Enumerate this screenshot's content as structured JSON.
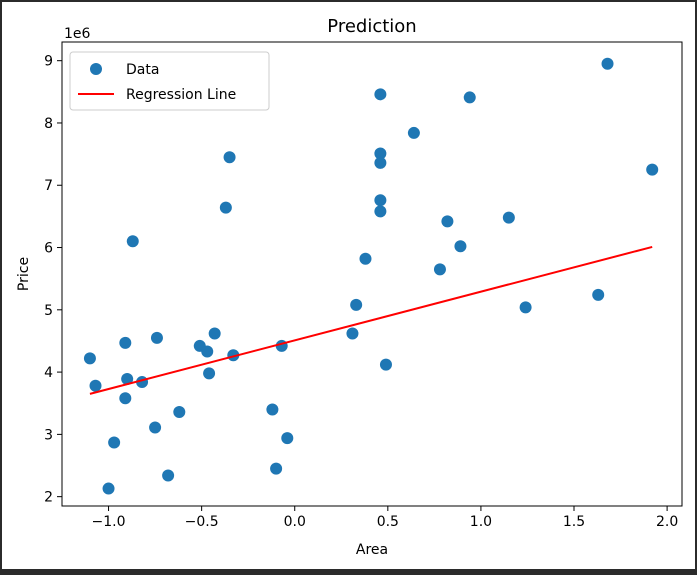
{
  "chart_data": {
    "type": "scatter",
    "title": "Prediction",
    "xlabel": "Area",
    "ylabel": "Price",
    "y_offset_label": "1e6",
    "xlim": [
      -1.25,
      2.08
    ],
    "ylim": [
      1.85,
      9.3
    ],
    "xticks": [
      {
        "v": -1.0,
        "label": "−1.0"
      },
      {
        "v": -0.5,
        "label": "−0.5"
      },
      {
        "v": 0.0,
        "label": "0.0"
      },
      {
        "v": 0.5,
        "label": "0.5"
      },
      {
        "v": 1.0,
        "label": "1.0"
      },
      {
        "v": 1.5,
        "label": "1.5"
      },
      {
        "v": 2.0,
        "label": "2.0"
      }
    ],
    "yticks": [
      {
        "v": 2,
        "label": "2"
      },
      {
        "v": 3,
        "label": "3"
      },
      {
        "v": 4,
        "label": "4"
      },
      {
        "v": 5,
        "label": "5"
      },
      {
        "v": 6,
        "label": "6"
      },
      {
        "v": 7,
        "label": "7"
      },
      {
        "v": 8,
        "label": "8"
      },
      {
        "v": 9,
        "label": "9"
      }
    ],
    "grid": false,
    "legend_position": "upper-left",
    "series": [
      {
        "name": "Data",
        "kind": "scatter",
        "color": "#1f77b4",
        "points": [
          [
            -1.1,
            4.22
          ],
          [
            -1.07,
            3.78
          ],
          [
            -1.0,
            2.13
          ],
          [
            -0.97,
            2.87
          ],
          [
            -0.91,
            4.47
          ],
          [
            -0.9,
            3.89
          ],
          [
            -0.91,
            3.58
          ],
          [
            -0.87,
            6.1
          ],
          [
            -0.82,
            3.84
          ],
          [
            -0.75,
            3.11
          ],
          [
            -0.74,
            4.55
          ],
          [
            -0.68,
            2.34
          ],
          [
            -0.62,
            3.36
          ],
          [
            -0.51,
            4.42
          ],
          [
            -0.47,
            4.33
          ],
          [
            -0.46,
            3.98
          ],
          [
            -0.43,
            4.62
          ],
          [
            -0.37,
            6.64
          ],
          [
            -0.35,
            7.45
          ],
          [
            -0.33,
            4.27
          ],
          [
            -0.12,
            3.4
          ],
          [
            -0.1,
            2.45
          ],
          [
            -0.07,
            4.42
          ],
          [
            -0.04,
            2.94
          ],
          [
            0.31,
            4.62
          ],
          [
            0.33,
            5.08
          ],
          [
            0.38,
            5.82
          ],
          [
            0.46,
            8.46
          ],
          [
            0.46,
            7.51
          ],
          [
            0.46,
            7.36
          ],
          [
            0.46,
            6.76
          ],
          [
            0.46,
            6.58
          ],
          [
            0.49,
            4.12
          ],
          [
            0.64,
            7.84
          ],
          [
            0.78,
            5.65
          ],
          [
            0.82,
            6.42
          ],
          [
            0.89,
            6.02
          ],
          [
            0.94,
            8.41
          ],
          [
            1.15,
            6.48
          ],
          [
            1.24,
            5.04
          ],
          [
            1.63,
            5.24
          ],
          [
            1.68,
            8.95
          ],
          [
            1.92,
            7.25
          ]
        ]
      },
      {
        "name": "Regression Line",
        "kind": "line",
        "color": "#ff0000",
        "points": [
          [
            -1.1,
            3.65
          ],
          [
            1.92,
            6.01
          ]
        ]
      }
    ]
  }
}
